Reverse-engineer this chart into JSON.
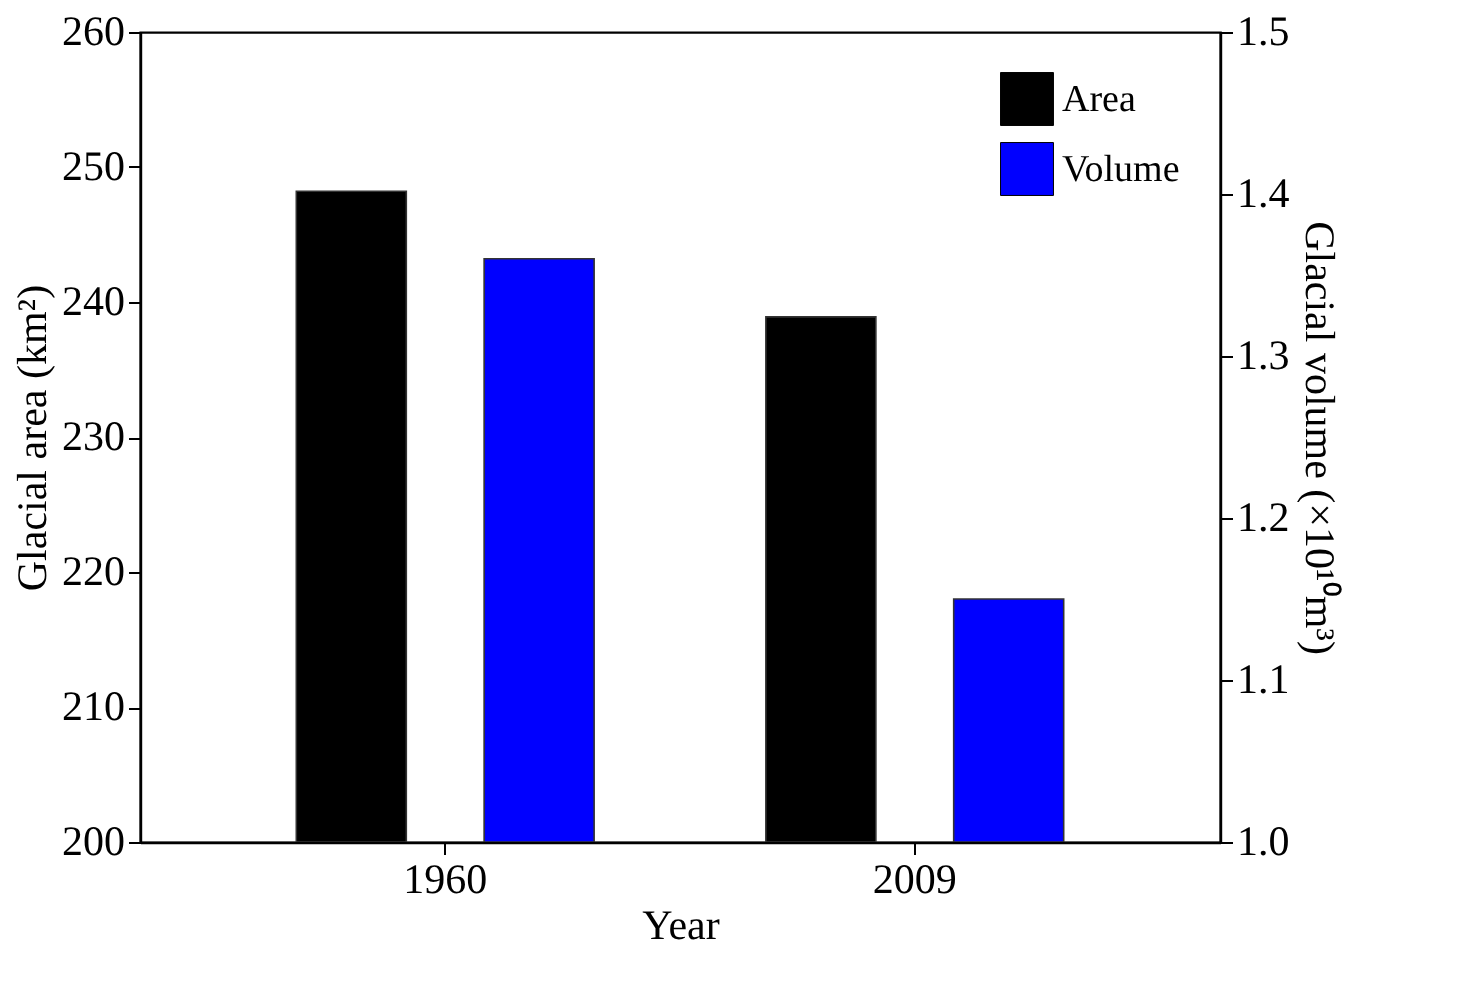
{
  "chart_data": {
    "type": "bar",
    "xlabel": "Year",
    "ylabel": "Glacial area (km²)",
    "y2label": "Glacial volume (×10¹⁰m³)",
    "categories": [
      "1960",
      "2009"
    ],
    "series": [
      {
        "name": "Area",
        "color": "#000000",
        "values": [
          248.2,
          238.9
        ]
      },
      {
        "name": "Volume",
        "color": "#0000ff",
        "values": [
          1.36,
          1.15
        ],
        "axis": "y2"
      }
    ],
    "ylim": [
      200,
      260
    ],
    "yticks": [
      200,
      210,
      220,
      230,
      240,
      250,
      260
    ],
    "y2lim": [
      1.0,
      1.5
    ],
    "y2ticks": [
      {
        "value": 1,
        "label": "1.0"
      },
      1.1,
      1.2,
      1.3,
      1.4,
      1.5
    ],
    "legend": "top right",
    "grid": false
  }
}
